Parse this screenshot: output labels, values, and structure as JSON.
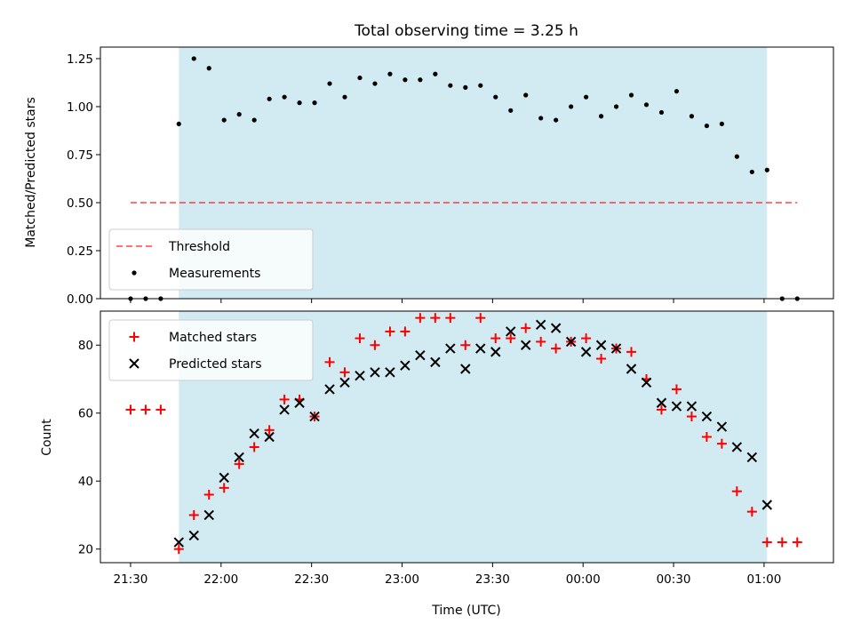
{
  "chart_data": {
    "type": "scatter",
    "title": "Total observing time = 3.25 h",
    "xlabel": "Time (UTC)",
    "x_ticks": [
      "21:30",
      "22:00",
      "22:30",
      "23:00",
      "23:30",
      "00:00",
      "00:30",
      "01:00"
    ],
    "x_tick_minutes": [
      0,
      30,
      60,
      90,
      120,
      150,
      180,
      210
    ],
    "x_range_minutes": [
      -10,
      233
    ],
    "observing_window_minutes": [
      16,
      211
    ],
    "observing_window_color": "#add8e6",
    "x_minutes": [
      0,
      5,
      10,
      16,
      21,
      26,
      31,
      36,
      41,
      46,
      51,
      56,
      61,
      66,
      71,
      76,
      81,
      86,
      91,
      96,
      101,
      106,
      111,
      116,
      121,
      126,
      131,
      136,
      141,
      146,
      151,
      156,
      161,
      166,
      171,
      176,
      181,
      186,
      191,
      196,
      201,
      206,
      211,
      216,
      221
    ],
    "panels": [
      {
        "ylabel": "Matched/Predicted stars",
        "ylim": [
          0,
          1.31
        ],
        "y_ticks": [
          "0.00",
          "0.25",
          "0.50",
          "0.75",
          "1.00",
          "1.25"
        ],
        "y_tick_values": [
          0,
          0.25,
          0.5,
          0.75,
          1.0,
          1.25
        ],
        "legend_position": "lower-left",
        "threshold": {
          "name": "Threshold",
          "value": 0.5,
          "x_range_minutes": [
            0,
            221
          ],
          "color": "#ff0000"
        },
        "series": [
          {
            "name": "Measurements",
            "marker": "dot",
            "color": "#000000",
            "values": [
              0,
              0,
              0,
              0.91,
              1.25,
              1.2,
              0.93,
              0.96,
              0.93,
              1.04,
              1.05,
              1.02,
              1.02,
              1.12,
              1.05,
              1.15,
              1.12,
              1.17,
              1.14,
              1.14,
              1.17,
              1.11,
              1.1,
              1.11,
              1.05,
              0.98,
              1.06,
              0.94,
              0.93,
              1.0,
              1.05,
              0.95,
              1.0,
              1.06,
              1.01,
              0.97,
              1.08,
              0.95,
              0.9,
              0.91,
              0.74,
              0.66,
              0.67,
              0,
              0
            ]
          }
        ]
      },
      {
        "ylabel": "Count",
        "ylim": [
          16,
          90
        ],
        "y_ticks": [
          "20",
          "40",
          "60",
          "80"
        ],
        "y_tick_values": [
          20,
          40,
          60,
          80
        ],
        "legend_position": "upper-left",
        "series": [
          {
            "name": "Matched stars",
            "marker": "plus",
            "color": "#ff0000",
            "values": [
              61,
              61,
              61,
              20,
              30,
              36,
              38,
              45,
              50,
              55,
              64,
              64,
              59,
              75,
              72,
              82,
              80,
              84,
              84,
              88,
              88,
              88,
              80,
              88,
              82,
              82,
              85,
              81,
              79,
              81,
              82,
              76,
              79,
              78,
              70,
              61,
              67,
              59,
              53,
              51,
              37,
              31,
              22,
              22,
              22
            ]
          },
          {
            "name": "Predicted stars",
            "marker": "x",
            "color": "#000000",
            "values": [
              null,
              null,
              null,
              22,
              24,
              30,
              41,
              47,
              54,
              53,
              61,
              63,
              59,
              67,
              69,
              71,
              72,
              72,
              74,
              77,
              75,
              79,
              73,
              79,
              78,
              84,
              80,
              86,
              85,
              81,
              78,
              80,
              79,
              73,
              69,
              63,
              62,
              62,
              59,
              56,
              50,
              47,
              33,
              null,
              null
            ]
          }
        ]
      }
    ]
  }
}
